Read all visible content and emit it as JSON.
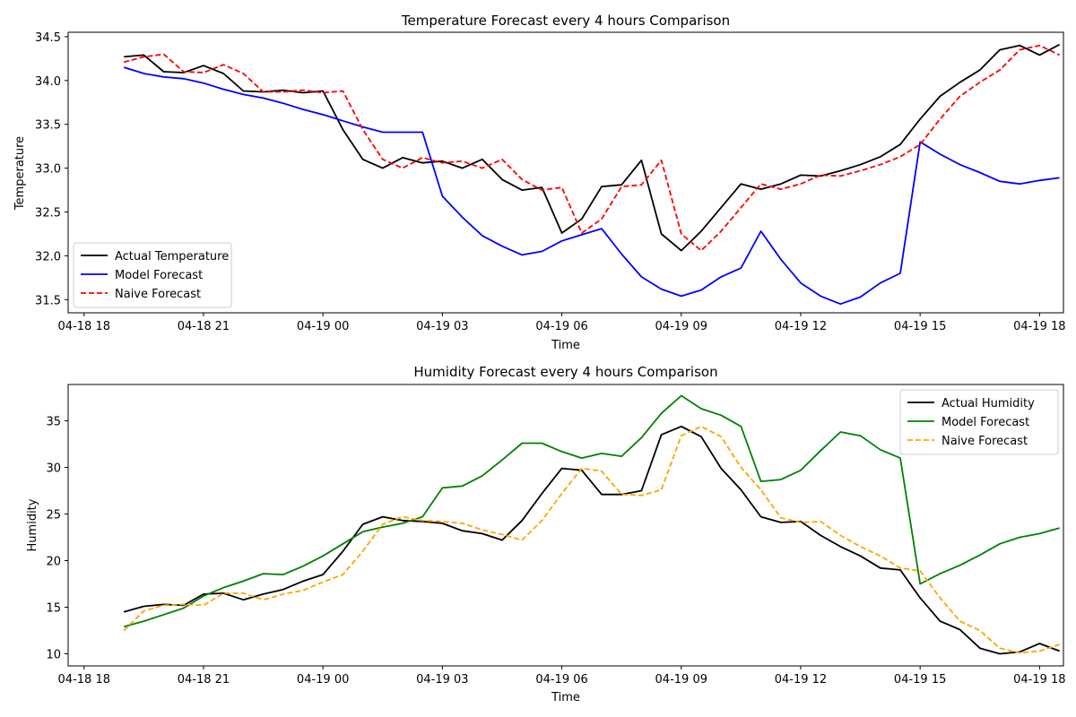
{
  "chart_data": [
    {
      "type": "line",
      "title": "Temperature Forecast every 4 hours Comparison",
      "xlabel": "Time",
      "ylabel": "Temperature",
      "xlim_hours": [
        -0.4,
        24.6
      ],
      "ylim": [
        31.35,
        34.55
      ],
      "x_ticks": [
        {
          "hour": 0,
          "label": "04-18 18"
        },
        {
          "hour": 3,
          "label": "04-18 21"
        },
        {
          "hour": 6,
          "label": "04-19 00"
        },
        {
          "hour": 9,
          "label": "04-19 03"
        },
        {
          "hour": 12,
          "label": "04-19 06"
        },
        {
          "hour": 15,
          "label": "04-19 09"
        },
        {
          "hour": 18,
          "label": "04-19 12"
        },
        {
          "hour": 21,
          "label": "04-19 15"
        },
        {
          "hour": 24,
          "label": "04-19 18"
        }
      ],
      "y_ticks": [
        {
          "value": 31.5,
          "label": "31.5"
        },
        {
          "value": 32.0,
          "label": "32.0"
        },
        {
          "value": 32.5,
          "label": "32.5"
        },
        {
          "value": 33.0,
          "label": "33.0"
        },
        {
          "value": 33.5,
          "label": "33.5"
        },
        {
          "value": 34.0,
          "label": "34.0"
        },
        {
          "value": 34.5,
          "label": "34.5"
        }
      ],
      "x_start_hour": 1,
      "x_step_hours": 0.5,
      "legend_position": "lower-left",
      "series": [
        {
          "name": "Actual Temperature",
          "color": "#000000",
          "dash": "solid",
          "values": [
            34.27,
            34.29,
            34.1,
            34.09,
            34.17,
            34.08,
            33.88,
            33.87,
            33.89,
            33.86,
            33.88,
            33.44,
            33.1,
            33.0,
            33.12,
            33.06,
            33.08,
            33.0,
            33.1,
            32.87,
            32.75,
            32.78,
            32.26,
            32.42,
            32.79,
            32.81,
            33.09,
            32.25,
            32.06,
            32.28,
            32.55,
            32.82,
            32.76,
            32.82,
            32.92,
            32.91,
            32.97,
            33.04,
            33.13,
            33.27,
            33.56,
            33.82,
            33.98,
            34.12,
            34.35,
            34.4,
            34.29,
            34.41
          ]
        },
        {
          "name": "Model Forecast",
          "color": "#0000ff",
          "dash": "solid",
          "values": [
            34.15,
            34.08,
            34.04,
            34.02,
            33.97,
            33.9,
            33.84,
            33.8,
            33.74,
            33.67,
            33.61,
            33.54,
            33.47,
            33.41,
            33.41,
            33.41,
            32.68,
            32.44,
            32.23,
            32.11,
            32.01,
            32.05,
            32.17,
            32.24,
            32.31,
            32.02,
            31.76,
            31.62,
            31.54,
            31.61,
            31.76,
            31.86,
            32.28,
            31.96,
            31.69,
            31.54,
            31.45,
            31.53,
            31.69,
            31.8,
            33.3,
            33.16,
            33.04,
            32.95,
            32.85,
            32.82,
            32.86,
            32.89
          ]
        },
        {
          "name": "Naive Forecast",
          "color": "#ff0000",
          "dash": "dashed",
          "values": [
            34.21,
            34.27,
            34.3,
            34.1,
            34.09,
            34.18,
            34.08,
            33.87,
            33.87,
            33.89,
            33.86,
            33.88,
            33.44,
            33.1,
            33.0,
            33.12,
            33.06,
            33.08,
            33.0,
            33.1,
            32.87,
            32.75,
            32.78,
            32.26,
            32.42,
            32.79,
            32.81,
            33.09,
            32.25,
            32.06,
            32.28,
            32.55,
            32.82,
            32.76,
            32.82,
            32.92,
            32.91,
            32.97,
            33.04,
            33.13,
            33.27,
            33.56,
            33.82,
            33.98,
            34.12,
            34.35,
            34.4,
            34.29
          ]
        }
      ]
    },
    {
      "type": "line",
      "title": "Humidity Forecast every 4 hours Comparison",
      "xlabel": "Time",
      "ylabel": "Humidity",
      "xlim_hours": [
        -0.4,
        24.6
      ],
      "ylim": [
        8.7,
        38.9
      ],
      "x_ticks": [
        {
          "hour": 0,
          "label": "04-18 18"
        },
        {
          "hour": 3,
          "label": "04-18 21"
        },
        {
          "hour": 6,
          "label": "04-19 00"
        },
        {
          "hour": 9,
          "label": "04-19 03"
        },
        {
          "hour": 12,
          "label": "04-19 06"
        },
        {
          "hour": 15,
          "label": "04-19 09"
        },
        {
          "hour": 18,
          "label": "04-19 12"
        },
        {
          "hour": 21,
          "label": "04-19 15"
        },
        {
          "hour": 24,
          "label": "04-19 18"
        }
      ],
      "y_ticks": [
        {
          "value": 10,
          "label": "10"
        },
        {
          "value": 15,
          "label": "15"
        },
        {
          "value": 20,
          "label": "20"
        },
        {
          "value": 25,
          "label": "25"
        },
        {
          "value": 30,
          "label": "30"
        },
        {
          "value": 35,
          "label": "35"
        }
      ],
      "x_start_hour": 1,
      "x_step_hours": 0.5,
      "legend_position": "upper-right",
      "series": [
        {
          "name": "Actual Humidity",
          "color": "#000000",
          "dash": "solid",
          "values": [
            14.5,
            15.1,
            15.3,
            15.2,
            16.4,
            16.5,
            15.8,
            16.4,
            16.9,
            17.8,
            18.5,
            21.0,
            23.9,
            24.7,
            24.3,
            24.2,
            24.0,
            23.2,
            22.9,
            22.2,
            24.3,
            27.2,
            29.9,
            29.7,
            27.1,
            27.1,
            27.5,
            33.5,
            34.4,
            33.3,
            29.9,
            27.6,
            24.7,
            24.1,
            24.2,
            22.7,
            21.5,
            20.5,
            19.2,
            19.0,
            16.0,
            13.5,
            12.6,
            10.6,
            10.0,
            10.2,
            11.1,
            10.3
          ]
        },
        {
          "name": "Model Forecast",
          "color": "#008000",
          "dash": "solid",
          "values": [
            12.9,
            13.5,
            14.2,
            14.9,
            16.2,
            17.1,
            17.8,
            18.6,
            18.5,
            19.4,
            20.5,
            21.8,
            23.1,
            23.6,
            24.0,
            24.7,
            27.8,
            28.0,
            29.1,
            30.8,
            32.6,
            32.6,
            31.7,
            31.0,
            31.5,
            31.2,
            33.2,
            35.8,
            37.7,
            36.3,
            35.6,
            34.4,
            28.5,
            28.7,
            29.7,
            31.8,
            33.8,
            33.4,
            31.9,
            31.0,
            17.5,
            18.6,
            19.5,
            20.6,
            21.8,
            22.5,
            22.9,
            23.5
          ]
        },
        {
          "name": "Naive Forecast",
          "color": "#ffa500",
          "dash": "dashed",
          "values": [
            12.5,
            14.6,
            15.2,
            15.3,
            15.2,
            16.5,
            16.5,
            15.8,
            16.4,
            16.8,
            17.7,
            18.5,
            21.0,
            23.9,
            24.7,
            24.3,
            24.2,
            24.0,
            23.3,
            22.8,
            22.2,
            24.3,
            27.2,
            29.9,
            29.6,
            27.1,
            27.0,
            27.6,
            33.4,
            34.4,
            33.3,
            30.0,
            27.6,
            24.6,
            24.1,
            24.2,
            22.7,
            21.5,
            20.5,
            19.2,
            18.9,
            16.0,
            13.5,
            12.5,
            10.6,
            10.1,
            10.3,
            11.0
          ]
        }
      ]
    }
  ]
}
